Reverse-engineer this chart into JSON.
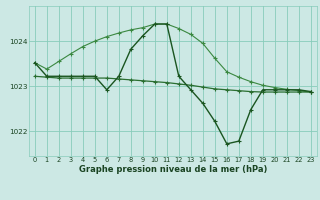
{
  "title": "Graphe pression niveau de la mer (hPa)",
  "bg_color": "#cce8e4",
  "grid_color": "#88ccbb",
  "line_color_dark": "#1a5520",
  "line_color_mid": "#2a6e30",
  "line_color_light": "#3a8840",
  "xlim": [
    -0.5,
    23.5
  ],
  "ylim": [
    1021.45,
    1024.78
  ],
  "yticks": [
    1022,
    1023,
    1024
  ],
  "xticks": [
    0,
    1,
    2,
    3,
    4,
    5,
    6,
    7,
    8,
    9,
    10,
    11,
    12,
    13,
    14,
    15,
    16,
    17,
    18,
    19,
    20,
    21,
    22,
    23
  ],
  "s1_x": [
    0,
    1,
    2,
    3,
    4,
    5,
    6,
    7,
    8,
    9,
    10,
    11,
    12,
    13,
    14,
    15,
    16,
    17,
    18,
    19,
    20,
    21,
    22,
    23
  ],
  "s1_y": [
    1023.52,
    1023.22,
    1023.22,
    1023.22,
    1023.22,
    1023.22,
    1022.92,
    1023.22,
    1023.82,
    1024.12,
    1024.38,
    1024.38,
    1023.22,
    1022.92,
    1022.62,
    1022.22,
    1021.72,
    1021.78,
    1022.48,
    1022.92,
    1022.92,
    1022.92,
    1022.92,
    1022.88
  ],
  "s2_x": [
    0,
    1,
    2,
    3,
    4,
    5,
    6,
    7,
    8,
    9,
    10,
    11,
    12,
    13,
    14,
    15,
    16,
    17,
    18,
    19,
    20,
    21,
    22,
    23
  ],
  "s2_y": [
    1023.22,
    1023.2,
    1023.18,
    1023.18,
    1023.18,
    1023.18,
    1023.18,
    1023.16,
    1023.14,
    1023.12,
    1023.1,
    1023.08,
    1023.05,
    1023.02,
    1022.98,
    1022.94,
    1022.92,
    1022.9,
    1022.88,
    1022.87,
    1022.87,
    1022.87,
    1022.87,
    1022.87
  ],
  "s3_x": [
    0,
    1,
    2,
    3,
    4,
    5,
    6,
    7,
    8,
    9,
    10,
    11,
    12,
    13,
    14,
    15,
    16,
    17,
    18,
    19,
    20,
    21,
    22,
    23
  ],
  "s3_y": [
    1023.52,
    1023.38,
    1023.55,
    1023.72,
    1023.88,
    1024.0,
    1024.1,
    1024.18,
    1024.25,
    1024.3,
    1024.38,
    1024.38,
    1024.28,
    1024.15,
    1023.95,
    1023.62,
    1023.32,
    1023.2,
    1023.1,
    1023.02,
    1022.97,
    1022.93,
    1022.9,
    1022.87
  ]
}
